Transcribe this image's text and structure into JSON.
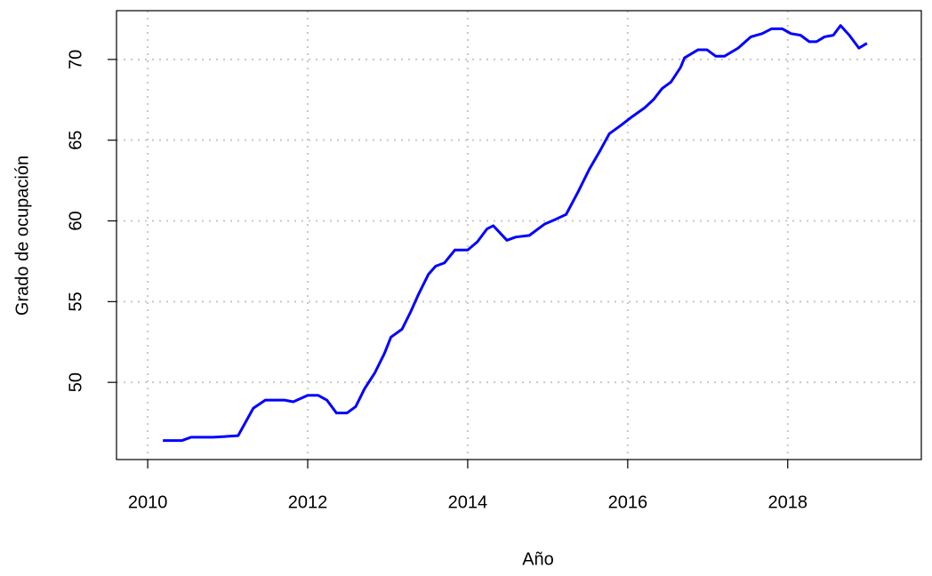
{
  "chart_data": {
    "type": "line",
    "x_label": "Año",
    "y_label": "Grado de ocupación",
    "x": [
      2010.19,
      2010.43,
      2010.54,
      2010.82,
      2011.13,
      2011.32,
      2011.47,
      2011.71,
      2011.82,
      2012.0,
      2012.13,
      2012.24,
      2012.36,
      2012.49,
      2012.6,
      2012.71,
      2012.84,
      2012.96,
      2013.04,
      2013.18,
      2013.29,
      2013.38,
      2013.51,
      2013.6,
      2013.71,
      2013.84,
      2014.0,
      2014.12,
      2014.24,
      2014.32,
      2014.49,
      2014.6,
      2014.77,
      2014.96,
      2015.1,
      2015.23,
      2015.38,
      2015.52,
      2015.66,
      2015.77,
      2015.91,
      2016.04,
      2016.21,
      2016.32,
      2016.43,
      2016.54,
      2016.66,
      2016.71,
      2016.88,
      2016.99,
      2017.1,
      2017.21,
      2017.38,
      2017.54,
      2017.68,
      2017.8,
      2017.93,
      2018.04,
      2018.16,
      2018.27,
      2018.36,
      2018.46,
      2018.57,
      2018.66,
      2018.77,
      2018.89,
      2018.99
    ],
    "series": [
      {
        "color": "#0000ff",
        "values": [
          46.4,
          46.4,
          46.6,
          46.6,
          46.7,
          48.4,
          48.9,
          48.9,
          48.8,
          49.2,
          49.2,
          48.9,
          48.1,
          48.1,
          48.5,
          49.6,
          50.6,
          51.8,
          52.8,
          53.3,
          54.4,
          55.4,
          56.7,
          57.2,
          57.4,
          58.2,
          58.2,
          58.7,
          59.5,
          59.7,
          58.8,
          59.0,
          59.1,
          59.8,
          60.1,
          60.4,
          61.8,
          63.2,
          64.4,
          65.4,
          65.9,
          66.4,
          67.0,
          67.5,
          68.2,
          68.6,
          69.5,
          70.1,
          70.6,
          70.6,
          70.2,
          70.2,
          70.7,
          71.4,
          71.6,
          71.9,
          71.9,
          71.6,
          71.5,
          71.1,
          71.1,
          71.4,
          71.5,
          72.1,
          71.5,
          70.7,
          71.0
        ]
      }
    ],
    "xlim": [
      2009.61,
      2019.67
    ],
    "xticks": [
      2010,
      2012,
      2014,
      2016,
      2018
    ],
    "ylim": [
      45.22,
      73.02
    ],
    "yticks": [
      50,
      55,
      60,
      65,
      70
    ],
    "grid": true
  }
}
